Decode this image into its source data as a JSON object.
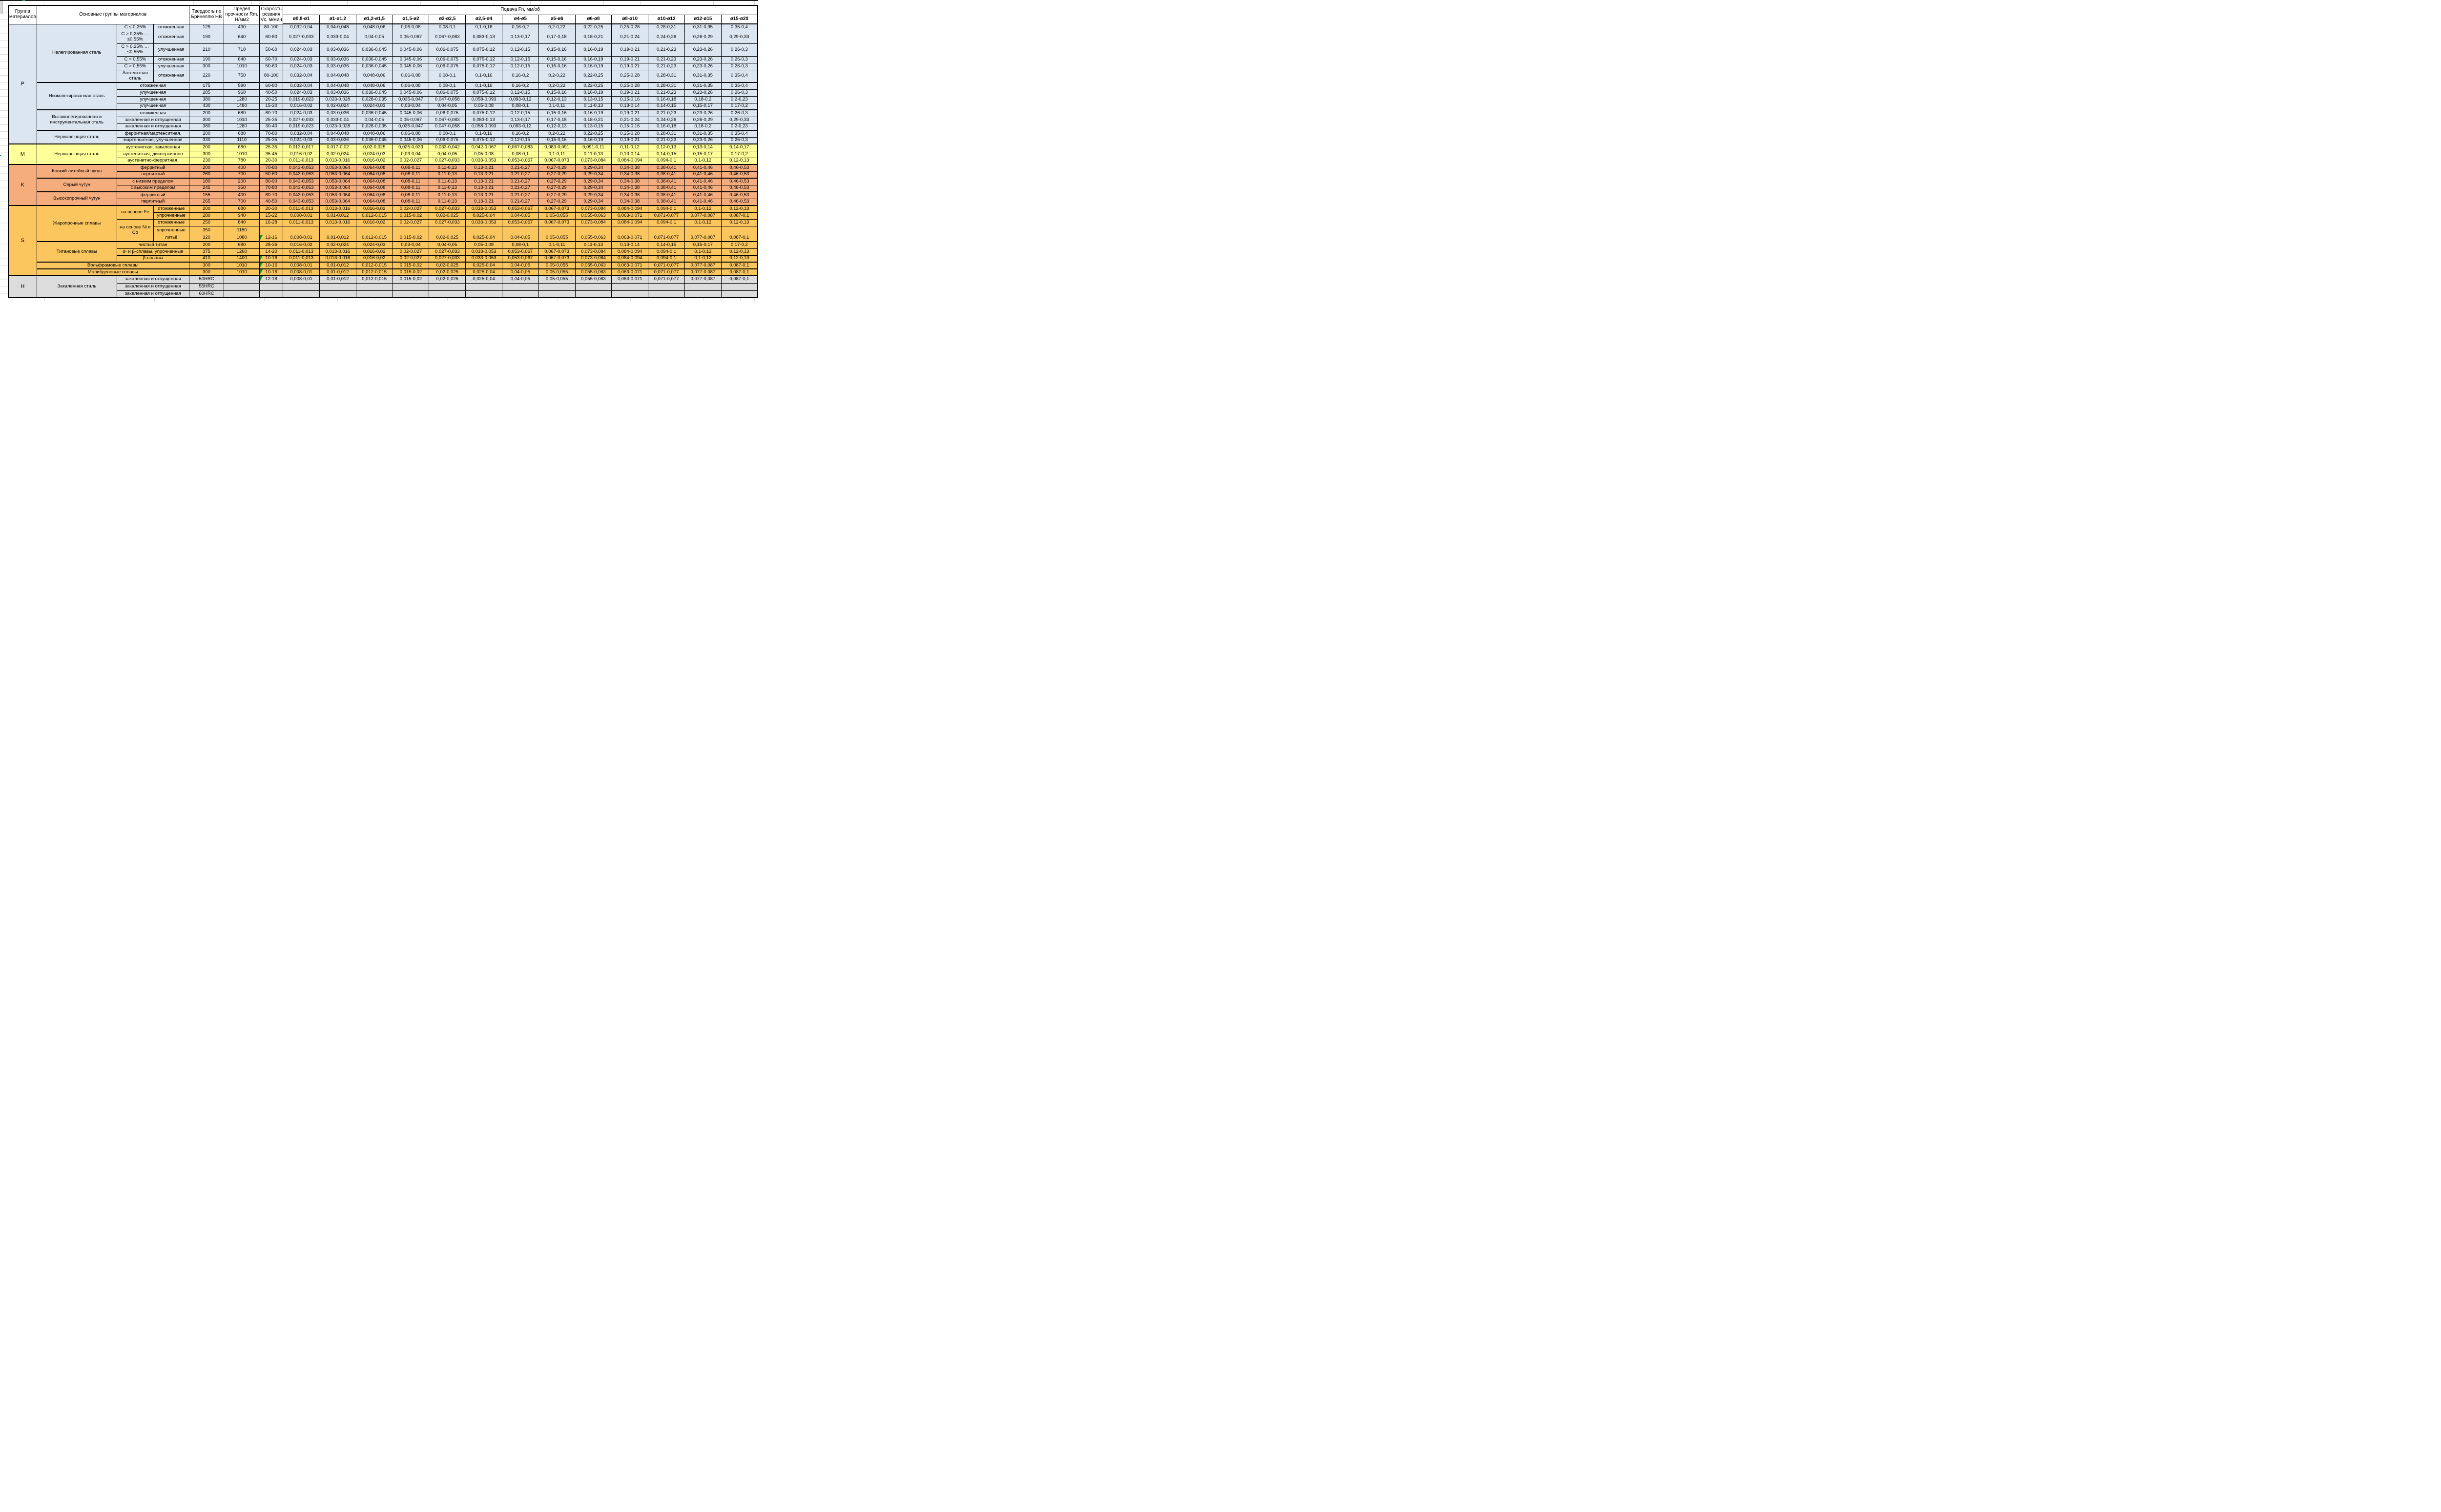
{
  "header": {
    "col1": "Группа материалов",
    "col2": "Основные группы материалов",
    "hb": "Твердость по Бринеллю HB",
    "rm": "Предел прочности Rm, Н/мм2",
    "vc": "Скорость резания Vc, м/мин",
    "feed": "Подача Fn, мм/об",
    "diameters": [
      "ø0,8-ø1",
      "ø1-ø1,2",
      "ø1,2-ø1,5",
      "ø1,5-ø2",
      "ø2-ø2,5",
      "ø2,5-ø4",
      "ø4-ø5",
      "ø5-ø6",
      "ø6-ø8",
      "ø8-ø10",
      "ø10-ø12",
      "ø12-ø15",
      "ø15-ø20"
    ]
  },
  "colors": {
    "p_fill": "#dce6f1",
    "m_fill": "#ffff99",
    "k_fill": "#f5ad7e",
    "s_fill": "#fcc65f",
    "h_fill": "#dcdcdc",
    "marker_green": "#1e8f3f",
    "gridline": "#d9d9d9",
    "border": "#000000"
  },
  "left_marker": "4",
  "feed_patterns": {
    "A": [
      "0,032-0,04",
      "0,04-0,048",
      "0,048-0,06",
      "0,06-0,08",
      "0,08-0,1",
      "0,1-0,16",
      "0,16-0,2",
      "0,2-0,22",
      "0,22-0,25",
      "0,25-0,28",
      "0,28-0,31",
      "0,31-0,35",
      "0,35-0,4"
    ],
    "B": [
      "0,027-0,033",
      "0,033-0,04",
      "0,04-0,05",
      "0,05-0,067",
      "0,067-0,083",
      "0,083-0,13",
      "0,13-0,17",
      "0,17-0,18",
      "0,18-0,21",
      "0,21-0,24",
      "0,24-0,26",
      "0,26-0,29",
      "0,29-0,33"
    ],
    "C": [
      "0,024-0,03",
      "0,03-0,036",
      "0,036-0,045",
      "0,045-0,06",
      "0,06-0,075",
      "0,075-0,12",
      "0,12-0,15",
      "0,15-0,16",
      "0,16-0,19",
      "0,19-0,21",
      "0,21-0,23",
      "0,23-0,26",
      "0,26-0,3"
    ],
    "D": [
      "0,019-0,023",
      "0,023-0,028",
      "0,028-0,035",
      "0,035-0,047",
      "0,047-0,058",
      "0,058-0,093",
      "0,093-0,12",
      "0,12-0,13",
      "0,13-0,15",
      "0,15-0,16",
      "0,16-0,18",
      "0,18-0,2",
      "0,2-0,23"
    ],
    "E": [
      "0,016-0,02",
      "0,02-0,024",
      "0,024-0,03",
      "0,03-0,04",
      "0,04-0,05",
      "0,05-0,08",
      "0,08-0,1",
      "0,1-0,11",
      "0,11-0,13",
      "0,13-0,14",
      "0,14-0,15",
      "0,15-0,17",
      "0,17-0,2"
    ],
    "F": [
      "0,013-0,017",
      "0,017-0,02",
      "0,02-0,025",
      "0,025-0,033",
      "0,033-0,042",
      "0,042-0,067",
      "0,067-0,083",
      "0,083-0,091",
      "0,091-0,11",
      "0,11-0,12",
      "0,12-0,13",
      "0,13-0,14",
      "0,14-0,17"
    ],
    "G": [
      "0,011-0,013",
      "0,013-0,016",
      "0,016-0,02",
      "0,02-0,027",
      "0,027-0,033",
      "0,033-0,053",
      "0,053-0,067",
      "0,067-0,073",
      "0,073-0,084",
      "0,084-0,094",
      "0,094-0,1",
      "0,1-0,12",
      "0,12-0,13"
    ],
    "H": [
      "0,043-0,053",
      "0,053-0,064",
      "0,064-0,08",
      "0,08-0,11",
      "0,11-0,13",
      "0,13-0,21",
      "0,21-0,27",
      "0,27-0,29",
      "0,29-0,34",
      "0,34-0,38",
      "0,38-0,41",
      "0,41-0,46",
      "0,46-0,53"
    ],
    "I": [
      "0,008-0,01",
      "0,01-0,012",
      "0,012-0,015",
      "0,015-0,02",
      "0,02-0,025",
      "0,025-0,04",
      "0,04-0,05",
      "0,05-0,055",
      "0,055-0,063",
      "0,063-0,071",
      "0,071-0,077",
      "0,077-0,087",
      "0,087-0,1"
    ],
    "Z": [
      "",
      "",
      "",
      "",
      "",
      "",
      "",
      "",
      "",
      "",
      "",
      "",
      ""
    ]
  },
  "rows": [
    {
      "h": 14,
      "g": "p",
      "cells": [
        {
          "t": "P",
          "k": "gl",
          "rs": 15,
          "n": "group-letter-P"
        },
        {
          "t": "Нелегированная сталь",
          "k": "main",
          "rs": 6
        },
        {
          "t": "C ≤ 0,25%",
          "k": "sub"
        },
        {
          "t": "отожженная",
          "k": "sub"
        },
        {
          "t": "125",
          "k": "hb"
        },
        {
          "t": "430",
          "k": "rm"
        },
        {
          "t": "80-100",
          "k": "vc"
        }
      ],
      "f": "A"
    },
    {
      "h": 26,
      "g": "p",
      "cells": [
        {
          "t": "C > 0,25% … ≤0,55%",
          "k": "sub"
        },
        {
          "t": "отожженная",
          "k": "sub"
        },
        {
          "t": "190",
          "k": "hb"
        },
        {
          "t": "640",
          "k": "rm"
        },
        {
          "t": "60-80",
          "k": "vc"
        }
      ],
      "f": "B"
    },
    {
      "h": 26,
      "g": "p",
      "cells": [
        {
          "t": "C > 0,25% … ≤0,55%",
          "k": "sub"
        },
        {
          "t": "улучшенная",
          "k": "sub"
        },
        {
          "t": "210",
          "k": "hb"
        },
        {
          "t": "710",
          "k": "rm"
        },
        {
          "t": "50-60",
          "k": "vc"
        }
      ],
      "f": "C"
    },
    {
      "h": 14,
      "g": "p",
      "cells": [
        {
          "t": "C > 0,55%",
          "k": "sub"
        },
        {
          "t": "отожженная",
          "k": "sub"
        },
        {
          "t": "190",
          "k": "hb"
        },
        {
          "t": "640",
          "k": "rm"
        },
        {
          "t": "60-70",
          "k": "vc"
        }
      ],
      "f": "C"
    },
    {
      "h": 14,
      "g": "p",
      "cells": [
        {
          "t": "C > 0,55%",
          "k": "sub"
        },
        {
          "t": "улучшенная",
          "k": "sub"
        },
        {
          "t": "300",
          "k": "hb"
        },
        {
          "t": "1010",
          "k": "rm"
        },
        {
          "t": "50-60",
          "k": "vc"
        }
      ],
      "f": "C"
    },
    {
      "h": 26,
      "g": "p",
      "cells": [
        {
          "t": "Автоматная сталь",
          "k": "sub"
        },
        {
          "t": "отожженная",
          "k": "sub"
        },
        {
          "t": "220",
          "k": "hb"
        },
        {
          "t": "750",
          "k": "rm"
        },
        {
          "t": "80-100",
          "k": "vc"
        }
      ],
      "f": "A"
    },
    {
      "h": 14,
      "g": "p",
      "tb": 2,
      "cells": [
        {
          "t": "Низколегированная сталь",
          "k": "main",
          "rs": 4
        },
        {
          "t": "отожженная",
          "k": "sub",
          "cs": 2
        },
        {
          "t": "175",
          "k": "hb"
        },
        {
          "t": "590",
          "k": "rm"
        },
        {
          "t": "60-80",
          "k": "vc"
        }
      ],
      "f": "A"
    },
    {
      "h": 14,
      "g": "p",
      "cells": [
        {
          "t": "улучшенная",
          "k": "sub",
          "cs": 2
        },
        {
          "t": "285",
          "k": "hb"
        },
        {
          "t": "960",
          "k": "rm"
        },
        {
          "t": "40-50",
          "k": "vc"
        }
      ],
      "f": "C"
    },
    {
      "h": 14,
      "g": "p",
      "cells": [
        {
          "t": "улучшенная",
          "k": "sub",
          "cs": 2
        },
        {
          "t": "380",
          "k": "hb"
        },
        {
          "t": "1280",
          "k": "rm"
        },
        {
          "t": "20-25",
          "k": "vc"
        }
      ],
      "f": "D"
    },
    {
      "h": 14,
      "g": "p",
      "cells": [
        {
          "t": "улучшенная",
          "k": "sub",
          "cs": 2
        },
        {
          "t": "430",
          "k": "hb"
        },
        {
          "t": "1480",
          "k": "rm"
        },
        {
          "t": "15-20",
          "k": "vc"
        }
      ],
      "f": "E"
    },
    {
      "h": 14,
      "g": "p",
      "tb": 2,
      "cells": [
        {
          "t": "Высоколегированная и инструментальная сталь",
          "k": "main",
          "rs": 3
        },
        {
          "t": "отожженная",
          "k": "sub",
          "cs": 2
        },
        {
          "t": "200",
          "k": "hb"
        },
        {
          "t": "680",
          "k": "rm"
        },
        {
          "t": "60-70",
          "k": "vc"
        }
      ],
      "f": "C"
    },
    {
      "h": 14,
      "g": "p",
      "cells": [
        {
          "t": "закаленная и отпущенная",
          "k": "sub",
          "cs": 2
        },
        {
          "t": "300",
          "k": "hb"
        },
        {
          "t": "1010",
          "k": "rm"
        },
        {
          "t": "25-35",
          "k": "vc"
        }
      ],
      "f": "B"
    },
    {
      "h": 14,
      "g": "p",
      "cells": [
        {
          "t": "закаленная и отпущенная",
          "k": "sub",
          "cs": 2
        },
        {
          "t": "380",
          "k": "hb"
        },
        {
          "t": "1280",
          "k": "rm"
        },
        {
          "t": "30-40",
          "k": "vc"
        }
      ],
      "f": "D"
    },
    {
      "h": 14,
      "g": "p",
      "tb": 2,
      "cells": [
        {
          "t": "Нержавеющая сталь",
          "k": "main",
          "rs": 2
        },
        {
          "t": "ферритная/мартенситная,",
          "k": "sub",
          "cs": 2
        },
        {
          "t": "200",
          "k": "hb"
        },
        {
          "t": "680",
          "k": "rm"
        },
        {
          "t": "70-80",
          "k": "vc"
        }
      ],
      "f": "A"
    },
    {
      "h": 14,
      "g": "p",
      "cells": [
        {
          "t": "мартенситная, улучшенная",
          "k": "sub",
          "cs": 2
        },
        {
          "t": "330",
          "k": "hb"
        },
        {
          "t": "1110",
          "k": "rm"
        },
        {
          "t": "25-35",
          "k": "vc"
        }
      ],
      "f": "C"
    },
    {
      "h": 14,
      "g": "m",
      "tb": 3,
      "cells": [
        {
          "t": "M",
          "k": "gl",
          "rs": 3,
          "n": "group-letter-M"
        },
        {
          "t": "Нержавеющая сталь",
          "k": "main",
          "rs": 3
        },
        {
          "t": "аустенитная, закаленная",
          "k": "sub",
          "cs": 2
        },
        {
          "t": "200",
          "k": "hb"
        },
        {
          "t": "680",
          "k": "rm"
        },
        {
          "t": "25-35",
          "k": "vc"
        }
      ],
      "f": "F"
    },
    {
      "h": 14,
      "g": "m",
      "cells": [
        {
          "t": "аустенитная, дисперсионно",
          "k": "sub",
          "cs": 2
        },
        {
          "t": "300",
          "k": "hb"
        },
        {
          "t": "1010",
          "k": "rm"
        },
        {
          "t": "35-45",
          "k": "vc"
        }
      ],
      "f": "E"
    },
    {
      "h": 14,
      "g": "m",
      "cells": [
        {
          "t": "аустенитно-ферритная,",
          "k": "sub",
          "cs": 2
        },
        {
          "t": "230",
          "k": "hb"
        },
        {
          "t": "780",
          "k": "rm"
        },
        {
          "t": "20-30",
          "k": "vc"
        }
      ],
      "f": "G"
    },
    {
      "h": 14,
      "g": "k",
      "tb": 3,
      "cells": [
        {
          "t": "K",
          "k": "gl",
          "rs": 6,
          "n": "group-letter-K"
        },
        {
          "t": "Ковкий литейный чугун",
          "k": "main",
          "rs": 2
        },
        {
          "t": "ферритный",
          "k": "sub",
          "cs": 2
        },
        {
          "t": "200",
          "k": "hb"
        },
        {
          "t": "400",
          "k": "rm"
        },
        {
          "t": "70-80",
          "k": "vc"
        }
      ],
      "f": "H"
    },
    {
      "h": 14,
      "g": "k",
      "cells": [
        {
          "t": "перлитный",
          "k": "sub",
          "cs": 2
        },
        {
          "t": "260",
          "k": "hb"
        },
        {
          "t": "700",
          "k": "rm"
        },
        {
          "t": "50-60",
          "k": "vc"
        }
      ],
      "f": "H"
    },
    {
      "h": 14,
      "g": "k",
      "tb": 2,
      "cells": [
        {
          "t": "Серый чугун",
          "k": "main",
          "rs": 2
        },
        {
          "t": "с низким пределом",
          "k": "sub",
          "cs": 2
        },
        {
          "t": "180",
          "k": "hb"
        },
        {
          "t": "200",
          "k": "rm"
        },
        {
          "t": "80-90",
          "k": "vc"
        }
      ],
      "f": "H"
    },
    {
      "h": 14,
      "g": "k",
      "cells": [
        {
          "t": "с высоким пределом",
          "k": "sub",
          "cs": 2
        },
        {
          "t": "245",
          "k": "hb"
        },
        {
          "t": "350",
          "k": "rm"
        },
        {
          "t": "70-80",
          "k": "vc"
        }
      ],
      "f": "H"
    },
    {
      "h": 14,
      "g": "k",
      "tb": 2,
      "cells": [
        {
          "t": "Высокопрочный чугун",
          "k": "main",
          "rs": 2
        },
        {
          "t": "ферритный",
          "k": "sub",
          "cs": 2
        },
        {
          "t": "155",
          "k": "hb"
        },
        {
          "t": "400",
          "k": "rm"
        },
        {
          "t": "60-70",
          "k": "vc"
        }
      ],
      "f": "H"
    },
    {
      "h": 14,
      "g": "k",
      "cells": [
        {
          "t": "перлитный",
          "k": "sub",
          "cs": 2
        },
        {
          "t": "265",
          "k": "hb"
        },
        {
          "t": "700",
          "k": "rm"
        },
        {
          "t": "40-50",
          "k": "vc"
        }
      ],
      "f": "H"
    },
    {
      "h": 14,
      "g": "s",
      "tb": 3,
      "cells": [
        {
          "t": "S",
          "k": "gl",
          "rs": 10,
          "n": "group-letter-S"
        },
        {
          "t": "Жаропрочные сплавы",
          "k": "main",
          "rs": 5
        },
        {
          "t": "на основе Fe",
          "k": "sub",
          "rs": 2
        },
        {
          "t": "отожженные",
          "k": "sub"
        },
        {
          "t": "200",
          "k": "hb"
        },
        {
          "t": "680",
          "k": "rm"
        },
        {
          "t": "20-30",
          "k": "vc"
        }
      ],
      "f": "G"
    },
    {
      "h": 14,
      "g": "s",
      "cells": [
        {
          "t": "упрочненные",
          "k": "sub"
        },
        {
          "t": "280",
          "k": "hb"
        },
        {
          "t": "940",
          "k": "rm"
        },
        {
          "t": "15-22",
          "k": "vc"
        }
      ],
      "f": "I"
    },
    {
      "h": 14,
      "g": "s",
      "cells": [
        {
          "t": "на основе Ni и Co",
          "k": "sub",
          "rs": 3
        },
        {
          "t": "отожженные",
          "k": "sub"
        },
        {
          "t": "250",
          "k": "hb"
        },
        {
          "t": "840",
          "k": "rm"
        },
        {
          "t": "16-28",
          "k": "vc"
        }
      ],
      "f": "G"
    },
    {
      "h": 18,
      "g": "s",
      "cells": [
        {
          "t": "упрочненные",
          "k": "sub"
        },
        {
          "t": "350",
          "k": "hb"
        },
        {
          "t": "1180",
          "k": "rm"
        },
        {
          "t": "",
          "k": "vc"
        }
      ],
      "f": "Z"
    },
    {
      "h": 14,
      "g": "s",
      "cells": [
        {
          "t": "литьё",
          "k": "sub"
        },
        {
          "t": "320",
          "k": "hb"
        },
        {
          "t": "1080",
          "k": "rm"
        },
        {
          "t": "12-16",
          "k": "vc",
          "mark": true
        }
      ],
      "f": "I"
    },
    {
      "h": 14,
      "g": "s",
      "tb": 2,
      "cells": [
        {
          "t": "Титановые сплавы",
          "k": "main",
          "rs": 3
        },
        {
          "t": "чистый титан",
          "k": "sub",
          "cs": 2
        },
        {
          "t": "200",
          "k": "hb"
        },
        {
          "t": "680",
          "k": "rm"
        },
        {
          "t": "28-36",
          "k": "vc"
        }
      ],
      "f": "E"
    },
    {
      "h": 14,
      "g": "s",
      "cells": [
        {
          "t": "α- и β-сплавы, упрочненные",
          "k": "sub",
          "cs": 2
        },
        {
          "t": "375",
          "k": "hb"
        },
        {
          "t": "1260",
          "k": "rm"
        },
        {
          "t": "14-20",
          "k": "vc"
        }
      ],
      "f": "G"
    },
    {
      "h": 14,
      "g": "s",
      "cells": [
        {
          "t": "β-сплавы",
          "k": "sub",
          "cs": 2
        },
        {
          "t": "410",
          "k": "hb"
        },
        {
          "t": "1400",
          "k": "rm"
        },
        {
          "t": "10-16",
          "k": "vc",
          "mark": true
        }
      ],
      "f": "G"
    },
    {
      "h": 14,
      "g": "s",
      "tb": 2,
      "cells": [
        {
          "t": "Вольфрамовые сплавы",
          "k": "main",
          "cs": 3
        },
        {
          "t": "300",
          "k": "hb"
        },
        {
          "t": "1010",
          "k": "rm"
        },
        {
          "t": "10-16",
          "k": "vc",
          "mark": true
        }
      ],
      "f": "I"
    },
    {
      "h": 14,
      "g": "s",
      "tb": 2,
      "cells": [
        {
          "t": "Молибденовые сплавы",
          "k": "main",
          "cs": 3
        },
        {
          "t": "300",
          "k": "hb"
        },
        {
          "t": "1010",
          "k": "rm"
        },
        {
          "t": "10-16",
          "k": "vc",
          "mark": true
        }
      ],
      "f": "I"
    },
    {
      "h": 15,
      "g": "h",
      "tb": 3,
      "cells": [
        {
          "t": "H",
          "k": "gl",
          "rs": 3,
          "n": "group-letter-H"
        },
        {
          "t": "Закаленная сталь",
          "k": "main",
          "rs": 3
        },
        {
          "t": "закаленная и отпущенная",
          "k": "sub",
          "cs": 2
        },
        {
          "t": "50HRC",
          "k": "hb"
        },
        {
          "t": "",
          "k": "rm"
        },
        {
          "t": "12-18",
          "k": "vc",
          "mark": true
        }
      ],
      "f": "I"
    },
    {
      "h": 15,
      "g": "h",
      "cells": [
        {
          "t": "закаленная и отпущенная",
          "k": "sub",
          "cs": 2
        },
        {
          "t": "55HRC",
          "k": "hb"
        },
        {
          "t": "",
          "k": "rm"
        },
        {
          "t": "",
          "k": "vc"
        }
      ],
      "f": "Z"
    },
    {
      "h": 15,
      "g": "h",
      "cells": [
        {
          "t": "закаленная и отпущенная",
          "k": "sub",
          "cs": 2
        },
        {
          "t": "60HRC",
          "k": "hb"
        },
        {
          "t": "",
          "k": "rm"
        },
        {
          "t": "",
          "k": "vc"
        }
      ],
      "f": "Z"
    }
  ]
}
